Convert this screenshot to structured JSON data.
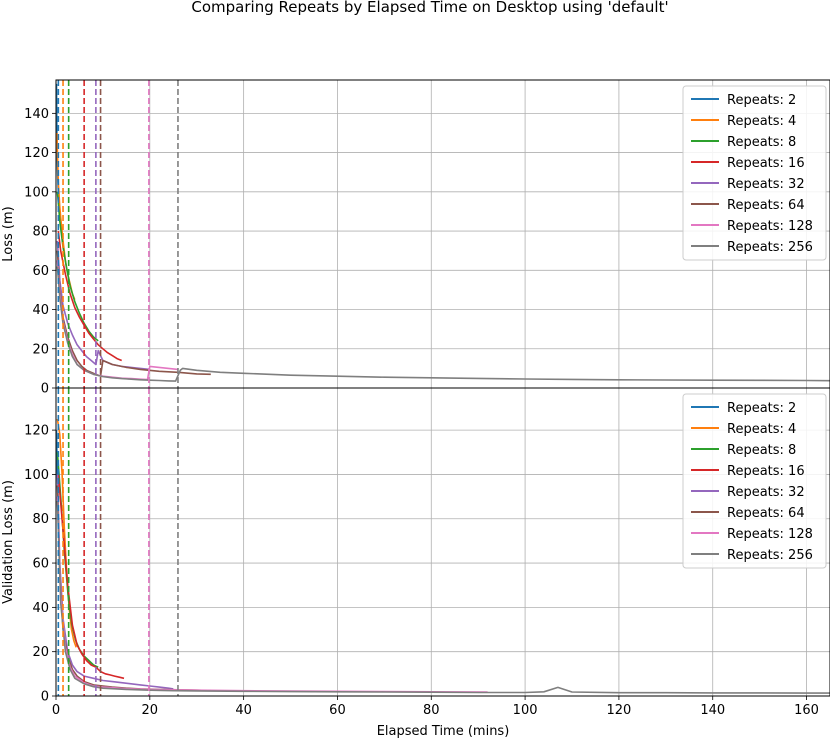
{
  "figure": {
    "title": "Comparing Repeats by Elapsed Time on Desktop using 'default'",
    "xlabel": "Elapsed Time (mins)"
  },
  "colors": {
    "Repeats: 2": "#1f77b4",
    "Repeats: 4": "#ff7f0e",
    "Repeats: 8": "#2ca02c",
    "Repeats: 16": "#d62728",
    "Repeats: 32": "#9467bd",
    "Repeats: 64": "#8c564b",
    "Repeats: 128": "#e377c2",
    "Repeats: 256": "#7f7f7f",
    "grid": "#b0b0b0"
  },
  "chart_data": [
    {
      "type": "line",
      "title": "",
      "ylabel": "Loss (m)",
      "xlabel": "",
      "xlim": [
        0,
        165
      ],
      "ylim": [
        0,
        157
      ],
      "xticks": [
        0,
        20,
        40,
        60,
        80,
        100,
        120,
        140,
        160
      ],
      "yticks": [
        0,
        20,
        40,
        60,
        80,
        100,
        120,
        140
      ],
      "grid": true,
      "legend": "top-right",
      "vlines": [
        {
          "series": "Repeats: 2",
          "x": 0.5
        },
        {
          "series": "Repeats: 4",
          "x": 1.5
        },
        {
          "series": "Repeats: 8",
          "x": 2.7
        },
        {
          "series": "Repeats: 16",
          "x": 6.0
        },
        {
          "series": "Repeats: 32",
          "x": 8.5
        },
        {
          "series": "Repeats: 64",
          "x": 9.5
        },
        {
          "series": "Repeats: 128",
          "x": 19.8
        },
        {
          "series": "Repeats: 256",
          "x": 26.0
        }
      ],
      "series": [
        {
          "name": "Repeats: 2",
          "x": [
            0.1,
            0.2,
            0.3,
            0.4,
            0.5
          ],
          "y": [
            155,
            130,
            115,
            105,
            100
          ]
        },
        {
          "name": "Repeats: 4",
          "x": [
            0.2,
            0.5,
            0.8,
            1.2,
            1.6,
            2.0,
            2.5,
            3.0,
            3.5,
            4.0
          ],
          "y": [
            130,
            105,
            92,
            82,
            73,
            65,
            58,
            53,
            48,
            45
          ]
        },
        {
          "name": "Repeats: 8",
          "x": [
            0.3,
            0.8,
            1.5,
            2.2,
            3.0,
            4.0,
            5.0,
            6.0,
            7.0,
            8.0,
            9.0
          ],
          "y": [
            100,
            85,
            72,
            62,
            52,
            44,
            38,
            33,
            29,
            26,
            24
          ]
        },
        {
          "name": "Repeats: 16",
          "x": [
            0.5,
            1.0,
            2.0,
            3.0,
            4.0,
            5.0,
            6.0,
            7.0,
            8.0,
            9.0,
            10.0,
            11.0,
            12.0,
            13.0,
            14.0
          ],
          "y": [
            80,
            70,
            58,
            48,
            41,
            36,
            32,
            28,
            25,
            22,
            20,
            18,
            16.5,
            15,
            14
          ]
        },
        {
          "name": "Repeats: 32",
          "x": [
            0.3,
            0.8,
            1.5,
            2.5,
            3.5,
            4.5,
            5.5,
            6.5,
            7.5,
            8.5,
            9.0,
            10,
            12,
            14,
            16,
            18,
            20
          ],
          "y": [
            75,
            55,
            42,
            33,
            27,
            22,
            19,
            16,
            14,
            12,
            19,
            14,
            12,
            11,
            10.5,
            10,
            9.5
          ]
        },
        {
          "name": "Repeats: 64",
          "x": [
            0.3,
            0.8,
            1.5,
            2.5,
            3.5,
            4.5,
            5.5,
            6.5,
            7.5,
            8.5,
            9.0,
            9.5,
            10,
            12,
            15,
            18,
            22,
            26,
            30,
            33
          ],
          "y": [
            70,
            50,
            36,
            26,
            19,
            14,
            11,
            9,
            8,
            7,
            6.5,
            6.2,
            14,
            12,
            10.5,
            9.5,
            8.5,
            8,
            7.2,
            7
          ]
        },
        {
          "name": "Repeats: 128",
          "x": [
            0.3,
            0.8,
            1.5,
            2.5,
            3.5,
            4.5,
            6,
            8,
            10,
            12,
            14,
            16,
            18,
            19.5,
            20,
            22,
            24,
            26
          ],
          "y": [
            65,
            48,
            34,
            24,
            17,
            12,
            9,
            7,
            6,
            5.5,
            5,
            4.8,
            4.5,
            4.3,
            11,
            10.5,
            10,
            9.5
          ]
        },
        {
          "name": "Repeats: 256",
          "x": [
            0.3,
            0.8,
            1.5,
            2.5,
            3.5,
            4.5,
            6,
            8,
            10,
            12,
            14,
            16,
            18,
            20,
            22,
            24,
            25.5,
            26.5,
            27,
            30,
            35,
            40,
            50,
            60,
            70,
            80,
            90,
            100,
            110,
            120,
            130,
            140,
            150,
            160,
            165
          ],
          "y": [
            62,
            46,
            33,
            23,
            16,
            12,
            9,
            7,
            5.8,
            5.2,
            4.8,
            4.5,
            4.2,
            4,
            3.8,
            3.6,
            3.5,
            9,
            10,
            9,
            8,
            7.5,
            6.5,
            6,
            5.5,
            5.2,
            4.9,
            4.6,
            4.4,
            4.2,
            4.1,
            4,
            3.9,
            3.8,
            3.7
          ]
        }
      ]
    },
    {
      "type": "line",
      "title": "",
      "ylabel": "Validation Loss (m)",
      "xlabel": "Elapsed Time (mins)",
      "xlim": [
        0,
        165
      ],
      "ylim": [
        0,
        139
      ],
      "xticks": [
        0,
        20,
        40,
        60,
        80,
        100,
        120,
        140,
        160
      ],
      "yticks": [
        0,
        20,
        40,
        60,
        80,
        100,
        120
      ],
      "grid": true,
      "legend": "top-right",
      "vlines": [
        {
          "series": "Repeats: 2",
          "x": 0.5
        },
        {
          "series": "Repeats: 4",
          "x": 1.5
        },
        {
          "series": "Repeats: 8",
          "x": 2.7
        },
        {
          "series": "Repeats: 16",
          "x": 6.0
        },
        {
          "series": "Repeats: 32",
          "x": 8.5
        },
        {
          "series": "Repeats: 64",
          "x": 9.5
        },
        {
          "series": "Repeats: 128",
          "x": 19.8
        },
        {
          "series": "Repeats: 256",
          "x": 26.0
        }
      ],
      "series": [
        {
          "name": "Repeats: 2",
          "x": [
            0.1,
            0.2,
            0.3,
            0.4,
            0.5
          ],
          "y": [
            120,
            110,
            100,
            92,
            85
          ]
        },
        {
          "name": "Repeats: 4",
          "x": [
            0.3,
            0.8,
            1.3,
            1.8,
            2.3,
            2.8,
            3.3,
            3.8,
            4.3
          ],
          "y": [
            125,
            118,
            100,
            75,
            55,
            40,
            30,
            25,
            22
          ]
        },
        {
          "name": "Repeats: 8",
          "x": [
            0.3,
            1.0,
            1.8,
            2.6,
            3.4,
            4.2,
            5.0,
            6.0,
            7.0,
            8.0,
            9.0
          ],
          "y": [
            110,
            90,
            65,
            45,
            32,
            25,
            21,
            18,
            16,
            14,
            13
          ]
        },
        {
          "name": "Repeats: 16",
          "x": [
            0.5,
            1.5,
            2.5,
            3.5,
            4.5,
            5.5,
            6.5,
            7.5,
            8.5,
            9.5,
            10.5,
            11.5,
            12.5,
            13.5,
            14.5
          ],
          "y": [
            100,
            75,
            50,
            32,
            23,
            19,
            16,
            14,
            13,
            11,
            10,
            9.5,
            9,
            8.5,
            8
          ]
        },
        {
          "name": "Repeats: 32",
          "x": [
            0.3,
            0.8,
            1.5,
            2.5,
            3.5,
            4.5,
            6,
            8,
            10,
            12,
            14,
            16,
            18,
            20,
            22,
            24,
            25
          ],
          "y": [
            100,
            60,
            35,
            20,
            14,
            11,
            9,
            8,
            7,
            6.5,
            6,
            5.5,
            5,
            4.5,
            4,
            3.5,
            3.2
          ]
        },
        {
          "name": "Repeats: 64",
          "x": [
            0.3,
            0.8,
            1.5,
            2.5,
            3.5,
            4.5,
            6,
            8,
            10,
            12,
            15,
            18,
            22,
            26,
            30,
            33
          ],
          "y": [
            95,
            55,
            30,
            18,
            12,
            9,
            6.5,
            5,
            4.5,
            4,
            3.5,
            3.2,
            3,
            2.8,
            2.6,
            2.5
          ]
        },
        {
          "name": "Repeats: 128",
          "x": [
            0.3,
            1.0,
            2.0,
            3.0,
            4.0,
            6,
            8,
            10,
            15,
            20,
            25,
            30,
            40,
            50,
            60,
            70,
            80,
            92
          ],
          "y": [
            90,
            45,
            22,
            13,
            9,
            6,
            4.5,
            4,
            3.3,
            3,
            2.8,
            2.6,
            2.4,
            2.2,
            2.1,
            2.0,
            1.9,
            1.8
          ]
        },
        {
          "name": "Repeats: 256",
          "x": [
            0.3,
            1.0,
            2.0,
            3.0,
            4.0,
            6,
            8,
            10,
            15,
            20,
            25,
            30,
            40,
            50,
            60,
            70,
            80,
            90,
            100,
            104,
            107,
            110,
            120,
            130,
            140,
            150,
            160,
            165
          ],
          "y": [
            88,
            42,
            20,
            12,
            8,
            5.5,
            4.2,
            3.5,
            3,
            2.6,
            2.4,
            2.3,
            2.1,
            2.0,
            1.9,
            1.8,
            1.7,
            1.6,
            1.6,
            1.9,
            3.9,
            1.8,
            1.5,
            1.5,
            1.4,
            1.4,
            1.3,
            1.3
          ]
        }
      ]
    }
  ]
}
